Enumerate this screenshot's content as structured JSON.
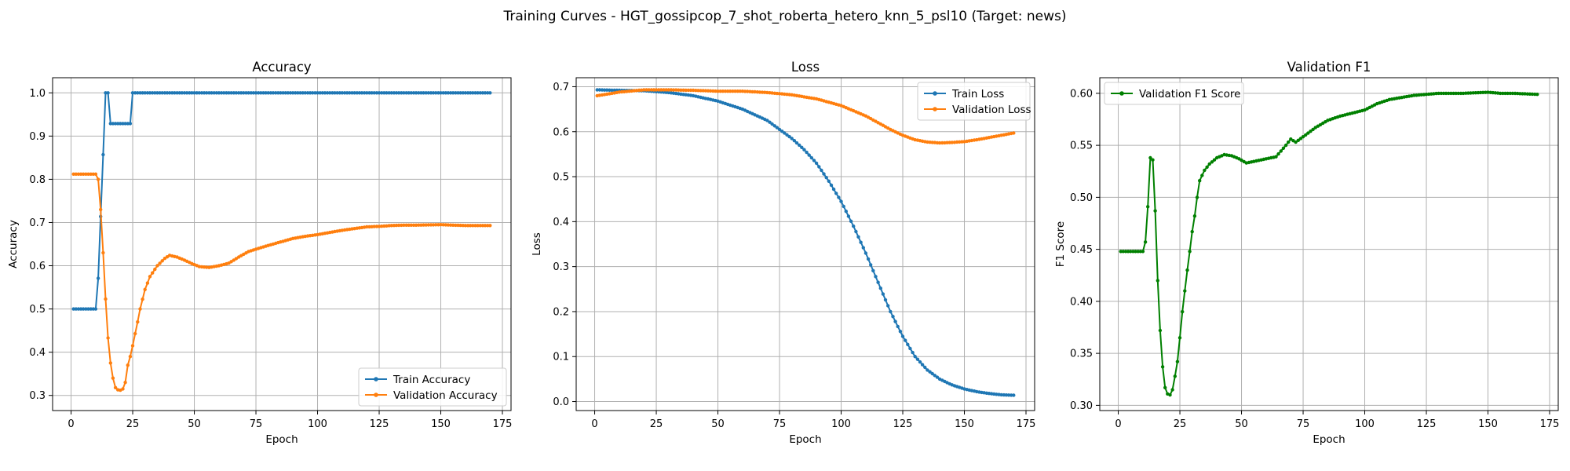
{
  "figure": {
    "title": "Training Curves - HGT_gossipcop_7_shot_roberta_hetero_knn_5_psl10 (Target: news)"
  },
  "chart_data": [
    {
      "type": "line",
      "title": "Accuracy",
      "xlabel": "Epoch",
      "ylabel": "Accuracy",
      "xlim": [
        -7.5,
        178.5
      ],
      "ylim": [
        0.265,
        1.035
      ],
      "xticks": [
        "0",
        "25",
        "50",
        "75",
        "100",
        "125",
        "150",
        "175"
      ],
      "yticks": [
        "0.3",
        "0.4",
        "0.5",
        "0.6",
        "0.7",
        "0.8",
        "0.9",
        "1.0"
      ],
      "grid": true,
      "legend_position": "lower-right",
      "series": [
        {
          "name": "Train Accuracy",
          "color": "#1f77b4",
          "keypoints": [
            [
              1,
              0.5
            ],
            [
              10,
              0.5
            ],
            [
              11,
              0.571
            ],
            [
              12,
              0.714
            ],
            [
              13,
              0.857
            ],
            [
              14,
              1.0
            ],
            [
              15,
              1.0
            ],
            [
              16,
              0.929
            ],
            [
              24,
              0.929
            ],
            [
              25,
              1.0
            ],
            [
              170,
              1.0
            ]
          ]
        },
        {
          "name": "Validation Accuracy",
          "color": "#ff7f0e",
          "keypoints": [
            [
              1,
              0.812
            ],
            [
              10,
              0.812
            ],
            [
              11,
              0.8
            ],
            [
              12,
              0.73
            ],
            [
              13,
              0.63
            ],
            [
              14,
              0.523
            ],
            [
              15,
              0.433
            ],
            [
              16,
              0.375
            ],
            [
              17,
              0.34
            ],
            [
              18,
              0.318
            ],
            [
              19,
              0.313
            ],
            [
              20,
              0.312
            ],
            [
              21,
              0.315
            ],
            [
              22,
              0.33
            ],
            [
              23,
              0.37
            ],
            [
              24,
              0.39
            ],
            [
              25,
              0.415
            ],
            [
              26,
              0.443
            ],
            [
              27,
              0.47
            ],
            [
              28,
              0.5
            ],
            [
              30,
              0.545
            ],
            [
              32,
              0.575
            ],
            [
              35,
              0.6
            ],
            [
              38,
              0.617
            ],
            [
              40,
              0.624
            ],
            [
              43,
              0.62
            ],
            [
              46,
              0.613
            ],
            [
              49,
              0.605
            ],
            [
              52,
              0.598
            ],
            [
              56,
              0.596
            ],
            [
              60,
              0.6
            ],
            [
              64,
              0.606
            ],
            [
              68,
              0.62
            ],
            [
              72,
              0.633
            ],
            [
              76,
              0.64
            ],
            [
              80,
              0.647
            ],
            [
              85,
              0.655
            ],
            [
              90,
              0.663
            ],
            [
              95,
              0.668
            ],
            [
              100,
              0.672
            ],
            [
              105,
              0.677
            ],
            [
              110,
              0.682
            ],
            [
              115,
              0.686
            ],
            [
              120,
              0.69
            ],
            [
              125,
              0.691
            ],
            [
              130,
              0.693
            ],
            [
              135,
              0.694
            ],
            [
              140,
              0.694
            ],
            [
              150,
              0.695
            ],
            [
              160,
              0.693
            ],
            [
              170,
              0.693
            ]
          ]
        }
      ]
    },
    {
      "type": "line",
      "title": "Loss",
      "xlabel": "Epoch",
      "ylabel": "Loss",
      "xlim": [
        -7.5,
        178.5
      ],
      "ylim": [
        -0.02,
        0.72
      ],
      "xticks": [
        "0",
        "25",
        "50",
        "75",
        "100",
        "125",
        "150",
        "175"
      ],
      "yticks": [
        "0.0",
        "0.1",
        "0.2",
        "0.3",
        "0.4",
        "0.5",
        "0.6",
        "0.7"
      ],
      "grid": true,
      "legend_position": "upper-right",
      "series": [
        {
          "name": "Train Loss",
          "color": "#1f77b4",
          "keypoints": [
            [
              1,
              0.693
            ],
            [
              10,
              0.692
            ],
            [
              20,
              0.691
            ],
            [
              30,
              0.687
            ],
            [
              40,
              0.68
            ],
            [
              50,
              0.668
            ],
            [
              60,
              0.65
            ],
            [
              70,
              0.625
            ],
            [
              80,
              0.585
            ],
            [
              85,
              0.56
            ],
            [
              90,
              0.53
            ],
            [
              95,
              0.49
            ],
            [
              100,
              0.445
            ],
            [
              105,
              0.39
            ],
            [
              110,
              0.33
            ],
            [
              115,
              0.265
            ],
            [
              120,
              0.2
            ],
            [
              125,
              0.145
            ],
            [
              130,
              0.1
            ],
            [
              135,
              0.07
            ],
            [
              140,
              0.05
            ],
            [
              145,
              0.037
            ],
            [
              150,
              0.028
            ],
            [
              155,
              0.022
            ],
            [
              160,
              0.018
            ],
            [
              165,
              0.015
            ],
            [
              170,
              0.014
            ]
          ]
        },
        {
          "name": "Validation Loss",
          "color": "#ff7f0e",
          "keypoints": [
            [
              1,
              0.68
            ],
            [
              10,
              0.688
            ],
            [
              20,
              0.693
            ],
            [
              30,
              0.693
            ],
            [
              40,
              0.692
            ],
            [
              50,
              0.69
            ],
            [
              60,
              0.69
            ],
            [
              70,
              0.687
            ],
            [
              80,
              0.682
            ],
            [
              90,
              0.673
            ],
            [
              100,
              0.658
            ],
            [
              110,
              0.635
            ],
            [
              120,
              0.605
            ],
            [
              125,
              0.592
            ],
            [
              130,
              0.582
            ],
            [
              135,
              0.577
            ],
            [
              140,
              0.575
            ],
            [
              145,
              0.576
            ],
            [
              150,
              0.578
            ],
            [
              155,
              0.582
            ],
            [
              160,
              0.587
            ],
            [
              165,
              0.592
            ],
            [
              170,
              0.597
            ]
          ]
        }
      ]
    },
    {
      "type": "line",
      "title": "Validation F1",
      "xlabel": "Epoch",
      "ylabel": "F1 Score",
      "xlim": [
        -7.5,
        178.5
      ],
      "ylim": [
        0.295,
        0.615
      ],
      "xticks": [
        "0",
        "25",
        "50",
        "75",
        "100",
        "125",
        "150",
        "175"
      ],
      "yticks": [
        "0.30",
        "0.35",
        "0.40",
        "0.45",
        "0.50",
        "0.55",
        "0.60"
      ],
      "grid": true,
      "legend_position": "upper-left",
      "series": [
        {
          "name": "Validation F1 Score",
          "color": "#008000",
          "keypoints": [
            [
              1,
              0.448
            ],
            [
              10,
              0.448
            ],
            [
              11,
              0.457
            ],
            [
              12,
              0.491
            ],
            [
              13,
              0.538
            ],
            [
              14,
              0.536
            ],
            [
              15,
              0.487
            ],
            [
              16,
              0.42
            ],
            [
              17,
              0.372
            ],
            [
              18,
              0.337
            ],
            [
              19,
              0.317
            ],
            [
              20,
              0.311
            ],
            [
              21,
              0.31
            ],
            [
              22,
              0.315
            ],
            [
              23,
              0.328
            ],
            [
              24,
              0.342
            ],
            [
              25,
              0.365
            ],
            [
              26,
              0.39
            ],
            [
              27,
              0.41
            ],
            [
              28,
              0.43
            ],
            [
              29,
              0.448
            ],
            [
              30,
              0.467
            ],
            [
              31,
              0.482
            ],
            [
              32,
              0.5
            ],
            [
              33,
              0.516
            ],
            [
              35,
              0.526
            ],
            [
              37,
              0.532
            ],
            [
              40,
              0.538
            ],
            [
              43,
              0.541
            ],
            [
              46,
              0.54
            ],
            [
              49,
              0.537
            ],
            [
              52,
              0.533
            ],
            [
              56,
              0.535
            ],
            [
              60,
              0.537
            ],
            [
              64,
              0.539
            ],
            [
              68,
              0.55
            ],
            [
              70,
              0.556
            ],
            [
              72,
              0.553
            ],
            [
              76,
              0.56
            ],
            [
              80,
              0.567
            ],
            [
              85,
              0.574
            ],
            [
              90,
              0.578
            ],
            [
              95,
              0.581
            ],
            [
              100,
              0.584
            ],
            [
              105,
              0.59
            ],
            [
              110,
              0.594
            ],
            [
              115,
              0.596
            ],
            [
              120,
              0.598
            ],
            [
              125,
              0.599
            ],
            [
              130,
              0.6
            ],
            [
              135,
              0.6
            ],
            [
              140,
              0.6
            ],
            [
              150,
              0.601
            ],
            [
              155,
              0.6
            ],
            [
              160,
              0.6
            ],
            [
              170,
              0.599
            ]
          ]
        }
      ]
    }
  ]
}
